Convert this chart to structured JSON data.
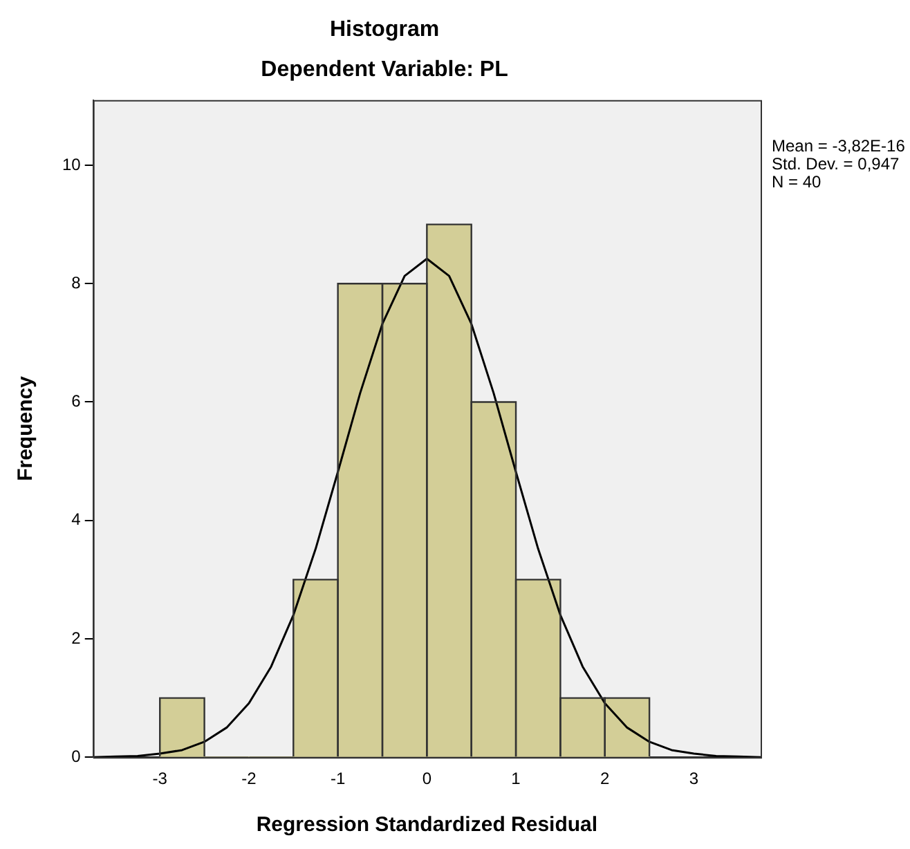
{
  "chart_data": {
    "type": "histogram",
    "title": "Histogram",
    "subtitle": "Dependent Variable: PL",
    "xlabel": "Regression Standardized Residual",
    "ylabel": "Frequency",
    "annotations": [
      "Mean = -3,82E-16",
      "Std. Dev. = 0,947",
      "N = 40"
    ],
    "bins": [
      -3,
      -2.5,
      -2,
      -1.5,
      -1,
      -0.5,
      0,
      0.5,
      1,
      1.5,
      2,
      2.5
    ],
    "values": [
      1,
      0,
      0,
      3,
      8,
      8,
      9,
      6,
      3,
      1,
      1
    ],
    "color": "#d3ce97",
    "series": [
      {
        "type": "line",
        "color": "#000000",
        "x": [
          -3.75,
          -3.5,
          -3.25,
          -3,
          -2.75,
          -2.5,
          -2.25,
          -2,
          -1.75,
          -1.5,
          -1.25,
          -1,
          -0.75,
          -0.5,
          -0.25,
          0,
          0.25,
          0.5,
          0.75,
          1,
          1.25,
          1.5,
          1.75,
          2,
          2.25,
          2.5,
          2.75,
          3,
          3.25,
          3.5,
          3.75
        ],
        "values": [
          0,
          0.01,
          0.02,
          0.06,
          0.12,
          0.26,
          0.5,
          0.91,
          1.53,
          2.4,
          3.52,
          4.82,
          6.15,
          7.32,
          8.13,
          8.42,
          8.13,
          7.32,
          6.15,
          4.82,
          3.52,
          2.4,
          1.53,
          0.91,
          0.5,
          0.26,
          0.12,
          0.06,
          0.02,
          0.01,
          0
        ]
      }
    ],
    "xlim": [
      -3.75,
      3.75
    ],
    "xticks": [
      -3,
      -2,
      -1,
      0,
      1,
      2,
      3
    ],
    "ylim": [
      0,
      11.1
    ],
    "yticks": [
      0,
      2,
      4,
      6,
      8,
      10
    ]
  }
}
